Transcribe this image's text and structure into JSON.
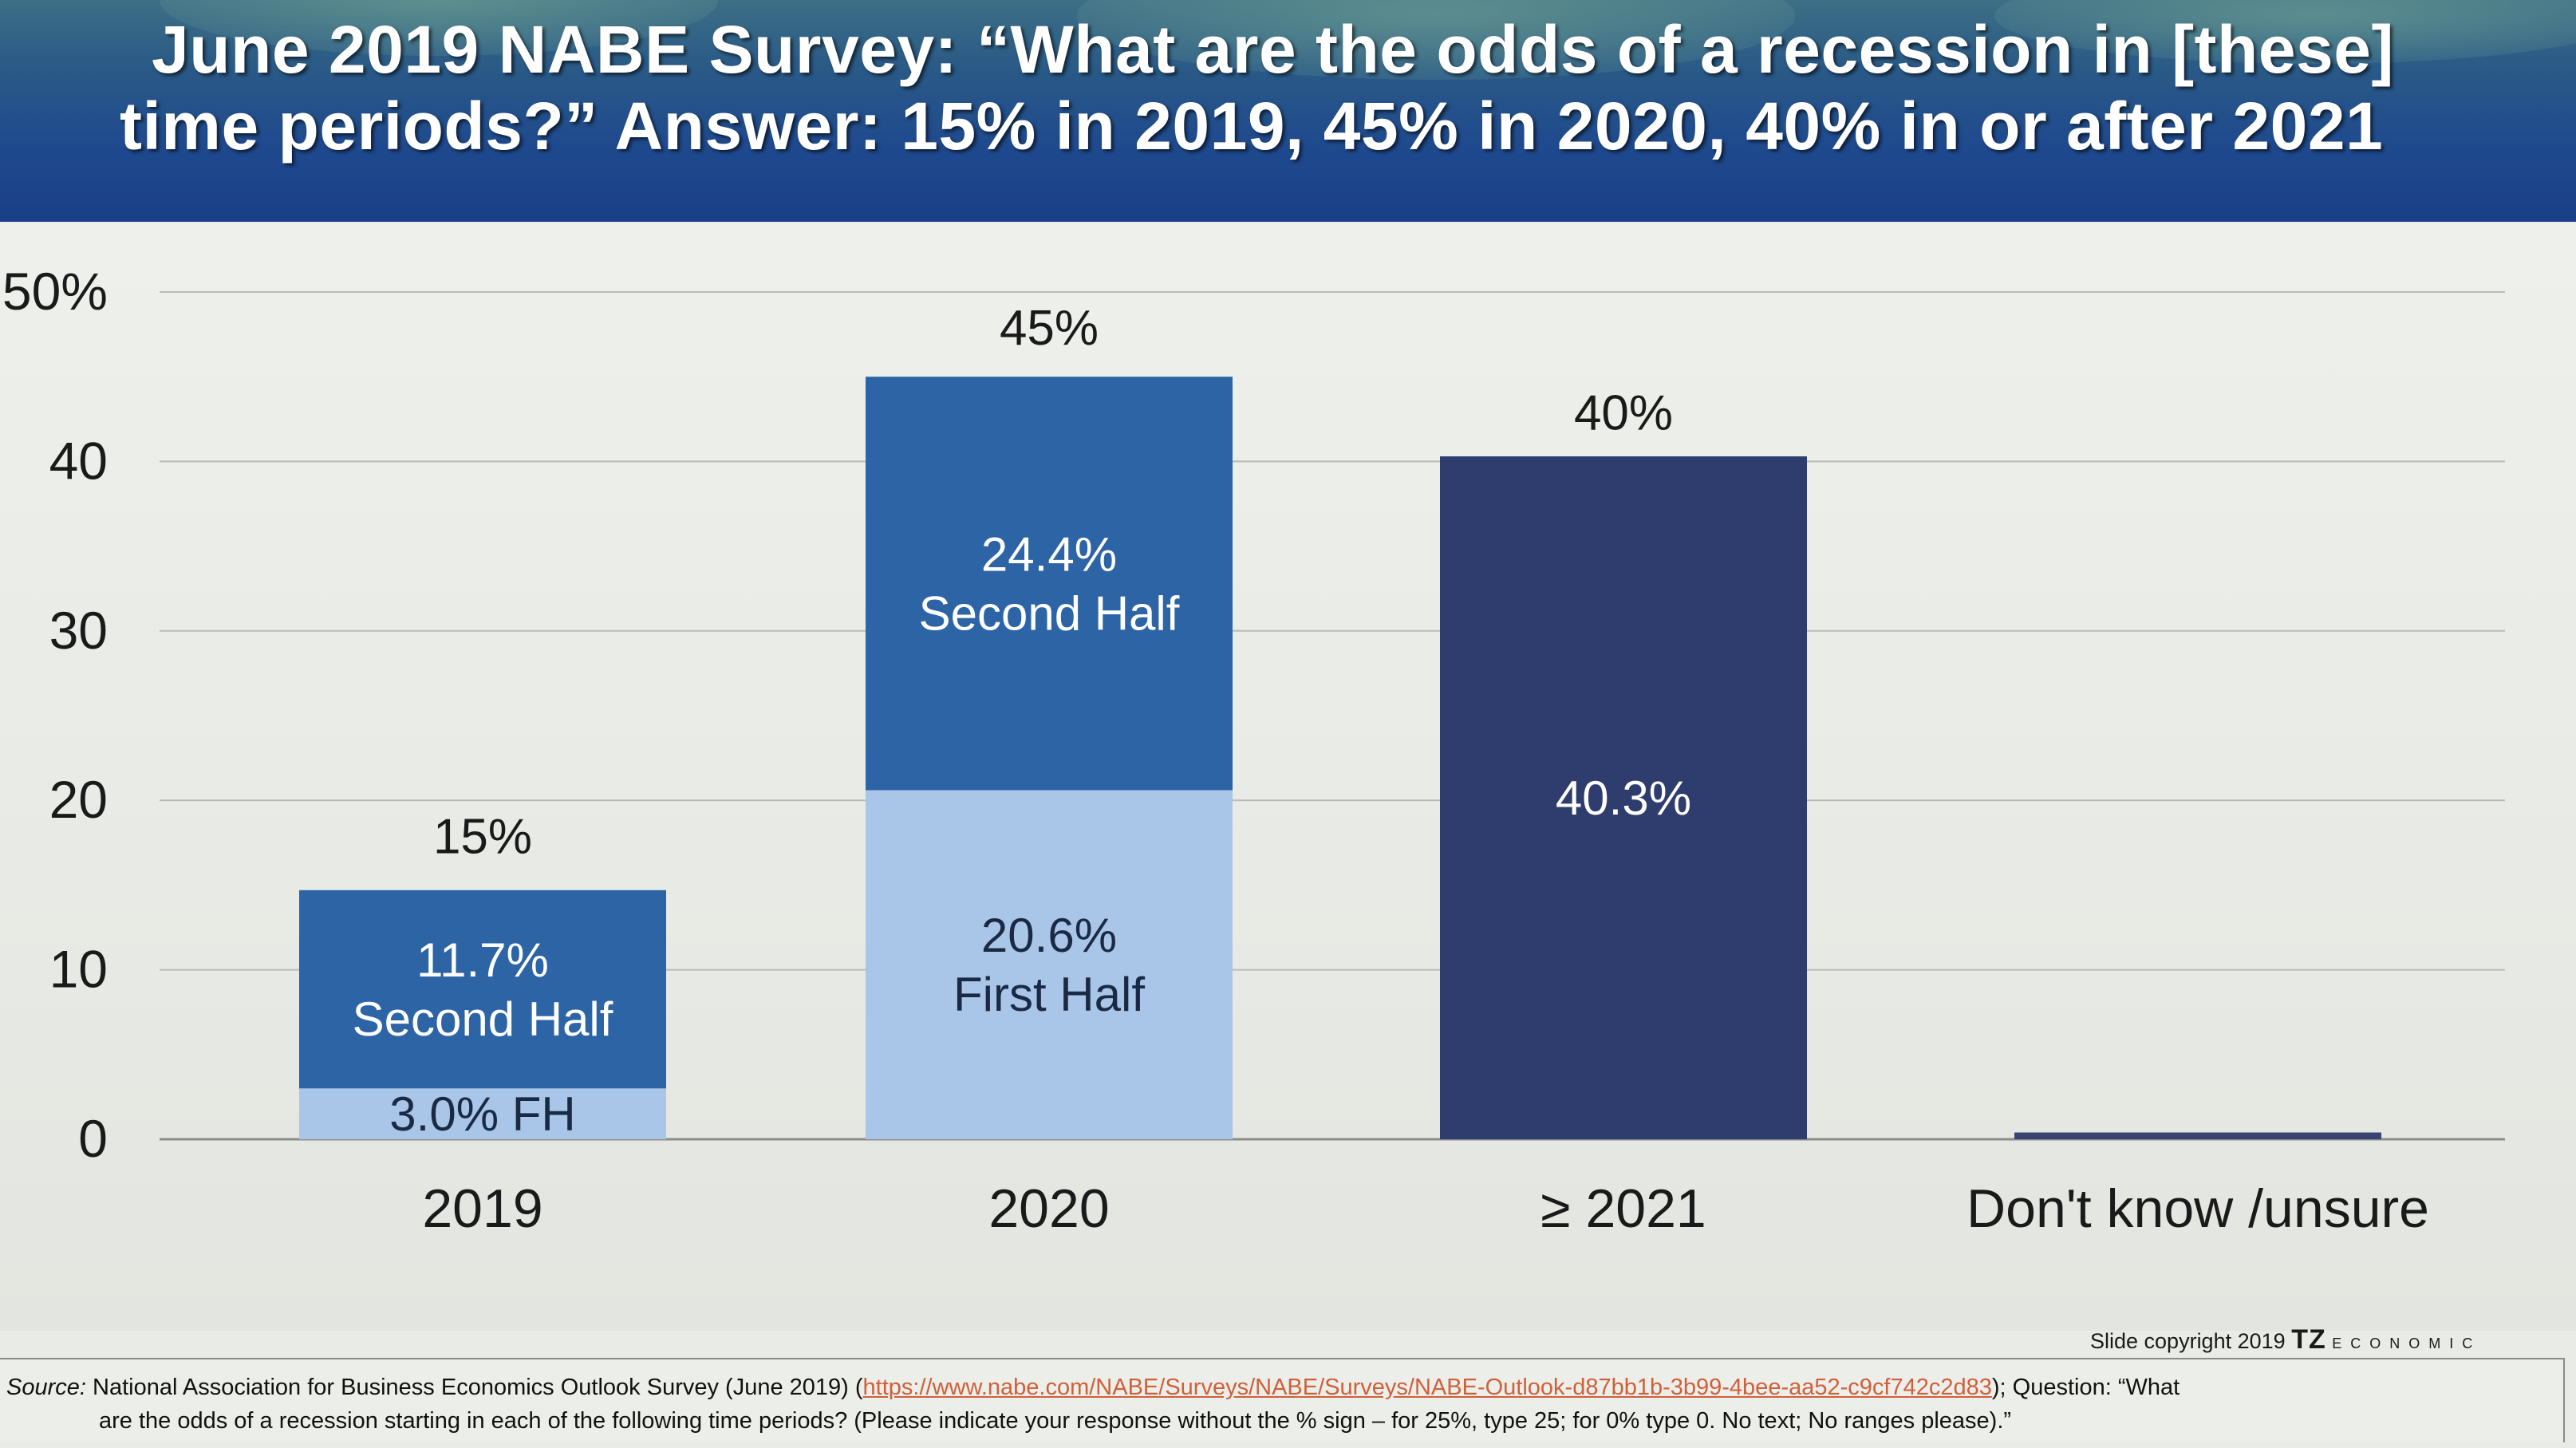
{
  "header": {
    "title_line1": "June 2019 NABE Survey:  “What are the odds of a recession in [these]",
    "title_line2": "time periods?”  Answer:  15% in 2019, 45% in 2020, 40% in or after 2021"
  },
  "chart_data": {
    "type": "bar",
    "stacked": true,
    "categories": [
      "2019",
      "2020",
      "≥ 2021",
      "Don't know /unsure"
    ],
    "y_ticks": [
      "0",
      "10",
      "20",
      "30",
      "40",
      "50%"
    ],
    "ylim": [
      0,
      50
    ],
    "grid": true,
    "totals": [
      15,
      45,
      40,
      0.4
    ],
    "total_labels": [
      "15%",
      "45%",
      "40%",
      ""
    ],
    "segments": [
      [
        {
          "value": 3.0,
          "label": "3.0% FH",
          "color": "#a9c6e8"
        },
        {
          "value": 11.7,
          "label": "11.7%\nSecond Half",
          "color": "#2c64a6"
        }
      ],
      [
        {
          "value": 20.6,
          "label": "20.6%\nFirst Half",
          "color": "#a9c6e8"
        },
        {
          "value": 24.4,
          "label": "24.4%\nSecond Half",
          "color": "#2c64a6"
        }
      ],
      [
        {
          "value": 40.3,
          "label": "40.3%",
          "color": "#2f3d6e"
        }
      ],
      [
        {
          "value": 0.4,
          "label": "",
          "color": "#3a4470"
        }
      ]
    ]
  },
  "footer": {
    "copyright_text": "Slide copyright 2019",
    "copyright_brand": "TZ",
    "copyright_logo": "E C O N O M I C",
    "source_label": "Source:",
    "source_text1": "National Association for Business Economics Outlook Survey (June 2019) (",
    "source_url": "https://www.nabe.com/NABE/Surveys/NABE/Surveys/NABE-Outlook-d87bb1b-3b99-4bee-aa52-c9cf742c2d83",
    "source_text2": "); Question:  “What",
    "source_line2": "are the odds of a recession starting in each of the following time periods? (Please indicate your response without the % sign – for 25%, type 25; for 0% type 0. No text; No ranges please).”"
  }
}
